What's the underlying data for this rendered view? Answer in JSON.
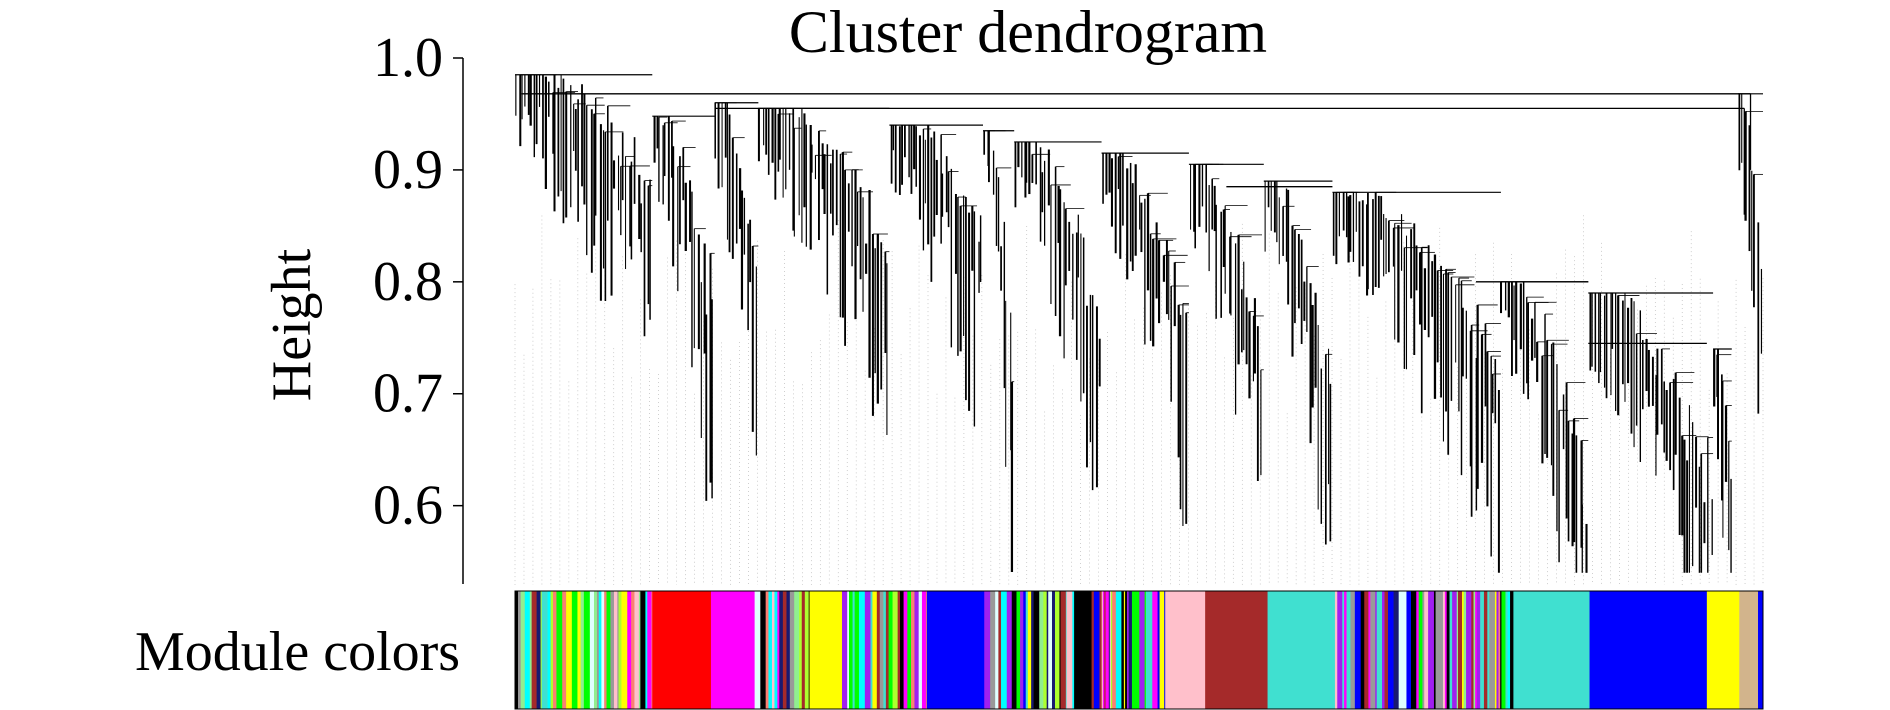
{
  "chart_data": {
    "type": "dendrogram",
    "title": "Cluster dendrogram",
    "ylabel": "Height",
    "xlabel": "",
    "yticks": [
      "1.0",
      "0.9",
      "0.8",
      "0.7",
      "0.6"
    ],
    "ylim": [
      0.53,
      1.0
    ],
    "color_bar_label": "Module colors",
    "top_merge_height": 0.955,
    "module_bands": [
      {
        "module": "mixed",
        "start": 0.0,
        "end": 0.106
      },
      {
        "module": "red",
        "start": 0.11,
        "end": 0.157
      },
      {
        "module": "magenta",
        "start": 0.157,
        "end": 0.192
      },
      {
        "module": "mixed",
        "start": 0.192,
        "end": 0.236
      },
      {
        "module": "yellow",
        "start": 0.236,
        "end": 0.262
      },
      {
        "module": "mixed",
        "start": 0.262,
        "end": 0.33
      },
      {
        "module": "blue",
        "start": 0.33,
        "end": 0.376
      },
      {
        "module": "mixed",
        "start": 0.376,
        "end": 0.442
      },
      {
        "module": "black",
        "start": 0.448,
        "end": 0.462
      },
      {
        "module": "mixed",
        "start": 0.462,
        "end": 0.521
      },
      {
        "module": "pink",
        "start": 0.521,
        "end": 0.553
      },
      {
        "module": "brown",
        "start": 0.553,
        "end": 0.603
      },
      {
        "module": "turquoise",
        "start": 0.603,
        "end": 0.657
      },
      {
        "module": "mixed",
        "start": 0.657,
        "end": 0.788
      },
      {
        "module": "turquoise",
        "start": 0.8,
        "end": 0.861
      },
      {
        "module": "blue",
        "start": 0.861,
        "end": 0.955
      },
      {
        "module": "yellow",
        "start": 0.955,
        "end": 0.981
      },
      {
        "module": "tan",
        "start": 0.981,
        "end": 0.996
      },
      {
        "module": "blue",
        "start": 0.996,
        "end": 1.0
      }
    ],
    "module_colors": {
      "red": "#ff0000",
      "magenta": "#ff00ff",
      "yellow": "#ffff00",
      "blue": "#0000ff",
      "black": "#000000",
      "pink": "#ffc0cb",
      "brown": "#a52a2a",
      "turquoise": "#40e0d0",
      "tan": "#d2b48c",
      "green": "#00ff00",
      "greenyellow": "#adff2f",
      "purple": "#a020f0",
      "salmon": "#fa8072",
      "cyan": "#00ffff",
      "grey60": "#999999",
      "lightcyan": "#e0ffff",
      "midnightblue": "#191970",
      "lightgreen": "#90ee90"
    },
    "mixed_palette": [
      "green",
      "greenyellow",
      "turquoise",
      "blue",
      "yellow",
      "purple",
      "salmon",
      "cyan",
      "grey60",
      "lightgreen",
      "midnightblue",
      "lightcyan",
      "brown",
      "pink",
      "black",
      "magenta"
    ]
  }
}
